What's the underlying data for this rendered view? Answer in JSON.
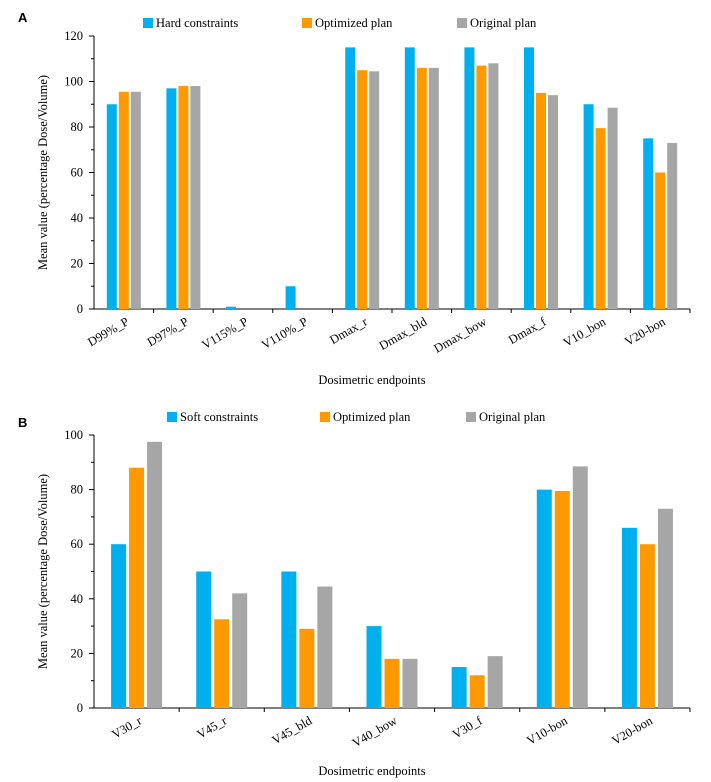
{
  "colors": {
    "blue": "#00B0EE",
    "orange": "#FF9900",
    "gray": "#A6A6A6",
    "axis": "#000000"
  },
  "chart_data": [
    {
      "panel": "A",
      "type": "bar",
      "xlabel": "Dosimetric endpoints",
      "ylabel": "Mean value (percentage Dose/Volume)",
      "ylim": [
        0,
        120
      ],
      "yticks": [
        0,
        20,
        40,
        60,
        80,
        100,
        120
      ],
      "grid": false,
      "legend_position": "top",
      "categories": [
        "D99%_P",
        "D97%_P",
        "V115%_P",
        "V110%_P",
        "Dmax_r",
        "Dmax_bld",
        "Dmax_bow",
        "Dmax_f",
        "V10_bon",
        "V20-bon"
      ],
      "series": [
        {
          "name": "Hard constraints",
          "color": "#00B0EE",
          "values": [
            90,
            97,
            1,
            10,
            115,
            115,
            115,
            115,
            90,
            75
          ]
        },
        {
          "name": "Optimized plan",
          "color": "#FF9900",
          "values": [
            95.5,
            98,
            0,
            0,
            105,
            106,
            107,
            95,
            79.5,
            60
          ]
        },
        {
          "name": "Original plan",
          "color": "#A6A6A6",
          "values": [
            95.5,
            98,
            0,
            0,
            104.5,
            106,
            108,
            94,
            88.5,
            73
          ]
        }
      ]
    },
    {
      "panel": "B",
      "type": "bar",
      "xlabel": "Dosimetric endpoints",
      "ylabel": "Mean value (percentage Dose/Volume)",
      "ylim": [
        0,
        100
      ],
      "yticks": [
        0,
        20,
        40,
        60,
        80,
        100
      ],
      "grid": false,
      "legend_position": "top",
      "categories": [
        "V30_r",
        "V45_r",
        "V45_bld",
        "V40_bow",
        "V30_f",
        "V10-bon",
        "V20-bon"
      ],
      "series": [
        {
          "name": "Soft constraints",
          "color": "#00B0EE",
          "values": [
            60,
            50,
            50,
            30,
            15,
            80,
            66
          ]
        },
        {
          "name": "Optimized plan",
          "color": "#FF9900",
          "values": [
            88,
            32.5,
            29,
            18,
            12,
            79.5,
            60
          ]
        },
        {
          "name": "Original plan",
          "color": "#A6A6A6",
          "values": [
            97.5,
            42,
            44.5,
            18,
            19,
            88.5,
            73
          ]
        }
      ]
    }
  ]
}
